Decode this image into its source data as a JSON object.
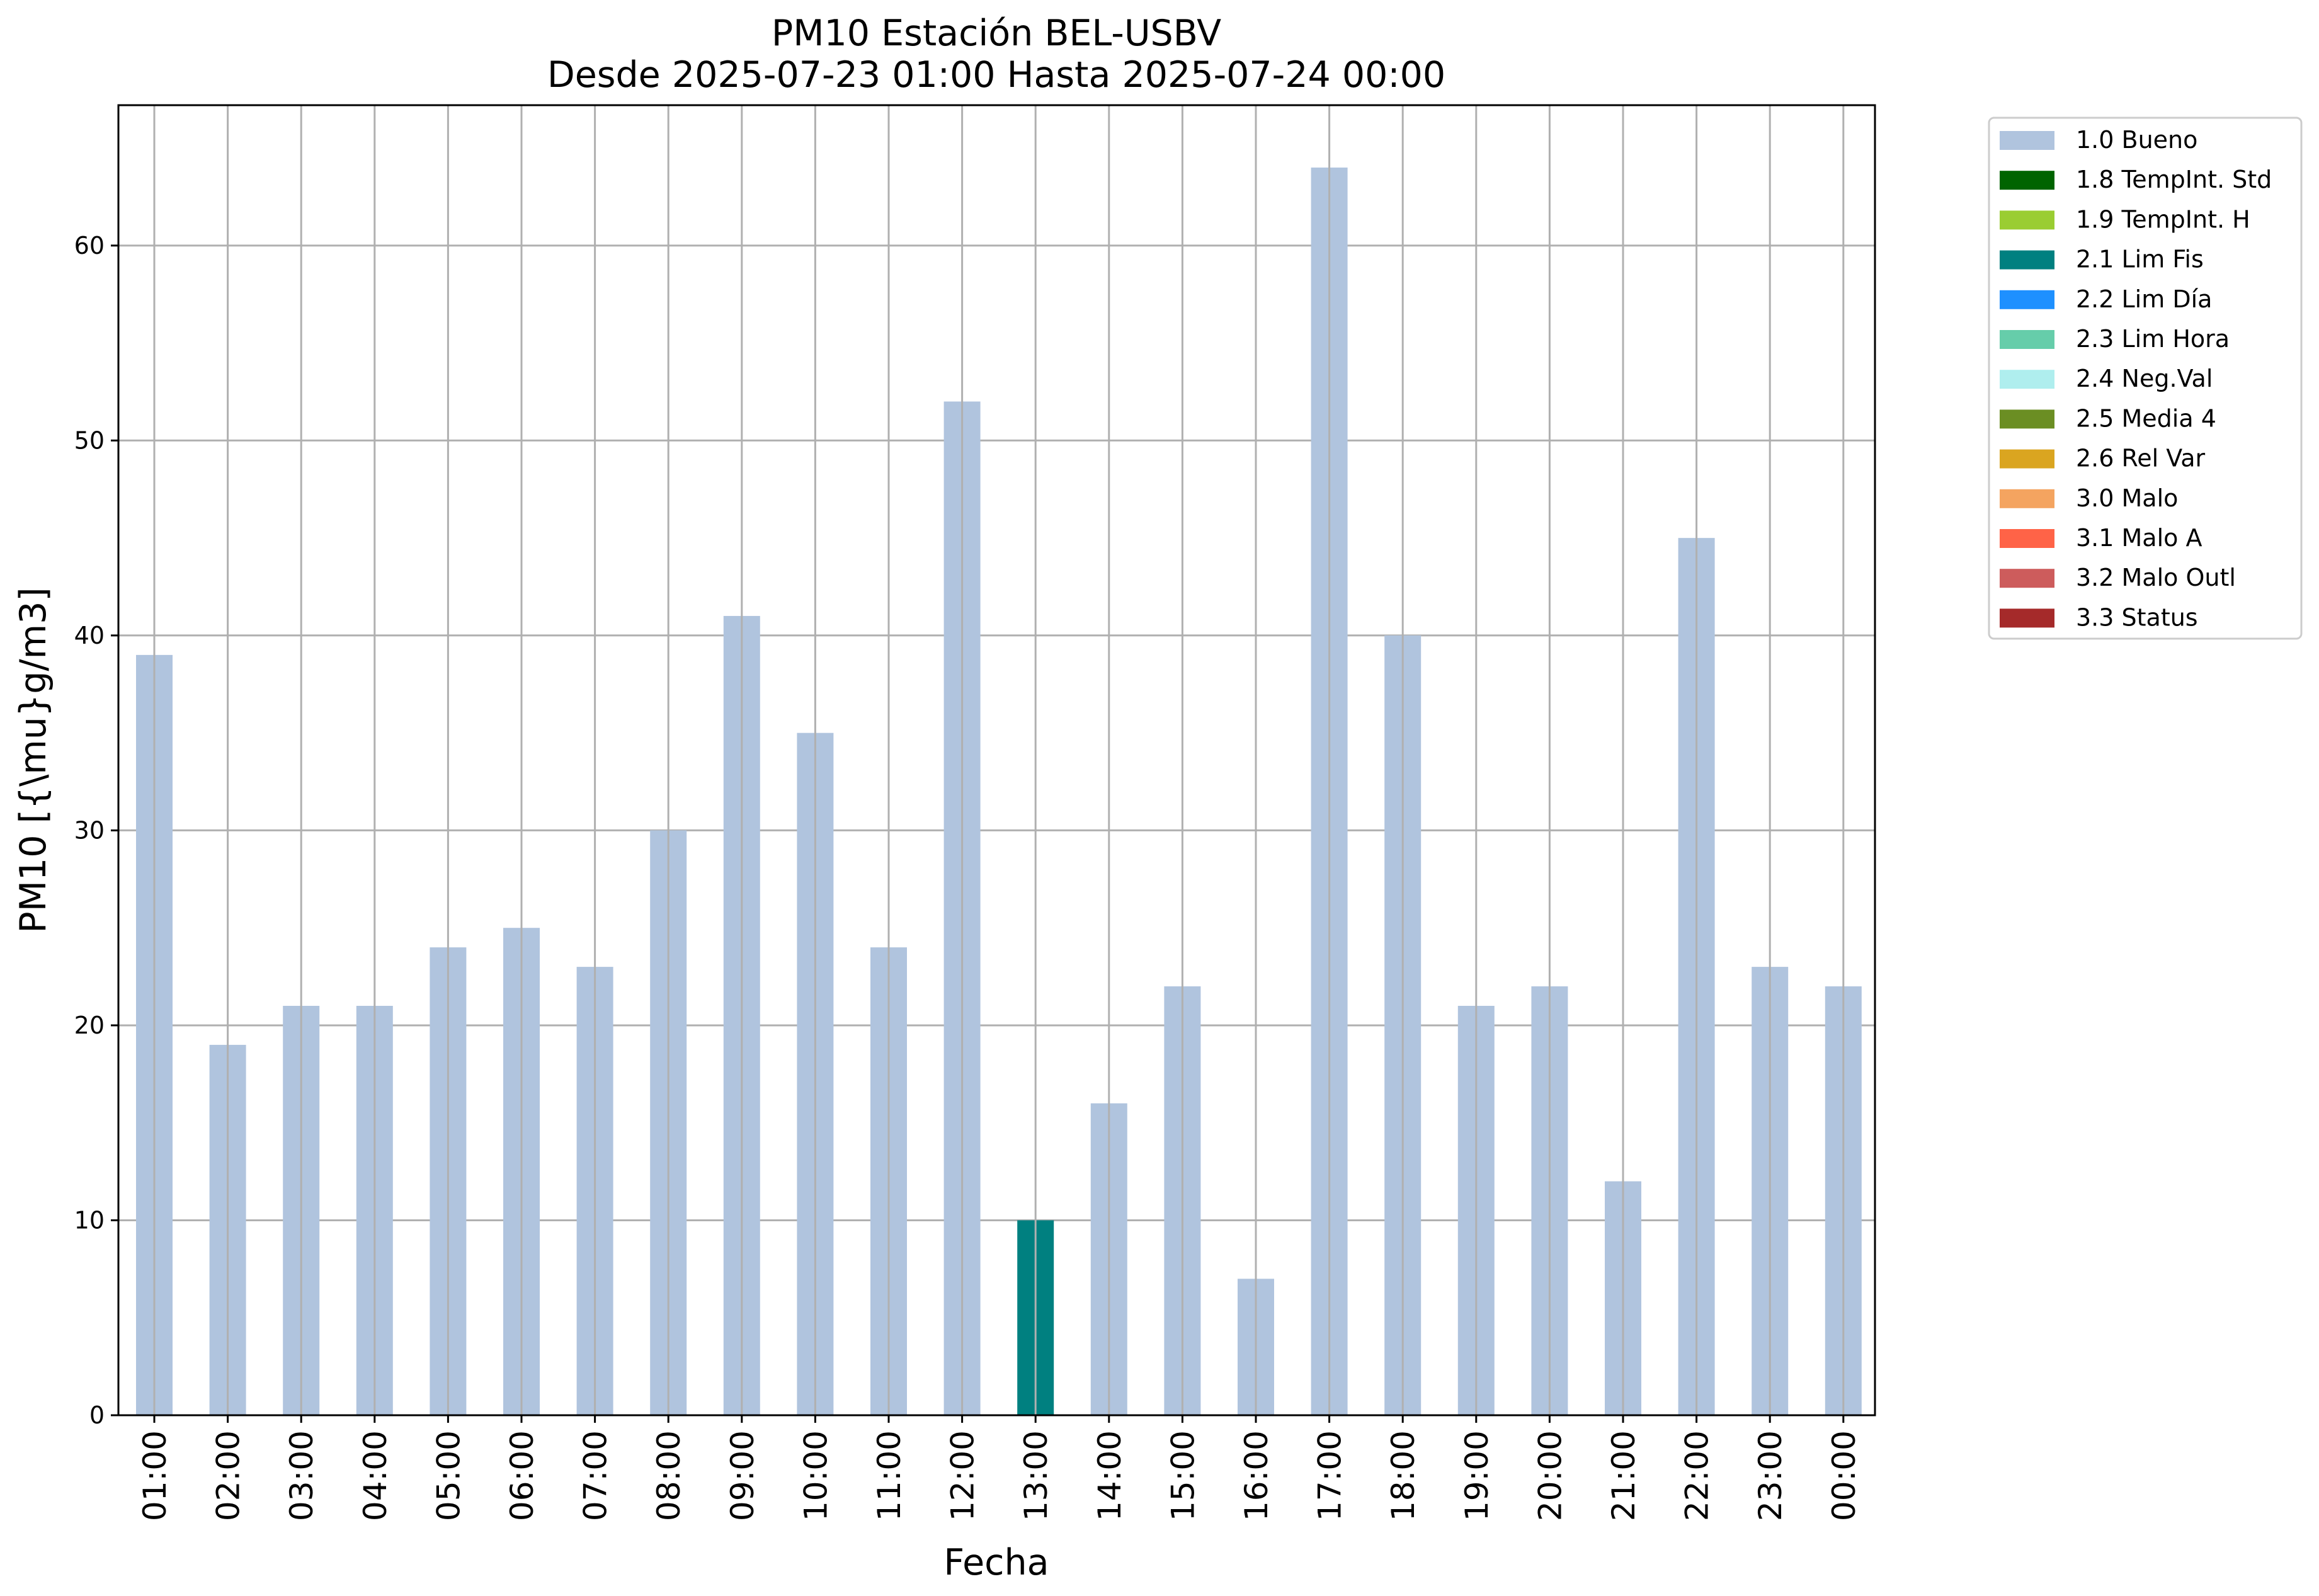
{
  "chart_data": {
    "type": "bar",
    "title": "PM10 Estación BEL-USBV",
    "subtitle": "Desde 2025-07-23 01:00 Hasta 2025-07-24 00:00",
    "xlabel": "Fecha",
    "ylabel": "PM10 [{\\mu}g/m3]",
    "ylim": [
      0,
      67.2
    ],
    "yticks": [
      0,
      10,
      20,
      30,
      40,
      50,
      60
    ],
    "grid": true,
    "legend_position": "outside-top-right",
    "categories": [
      "01:00",
      "02:00",
      "03:00",
      "04:00",
      "05:00",
      "06:00",
      "07:00",
      "08:00",
      "09:00",
      "10:00",
      "11:00",
      "12:00",
      "13:00",
      "14:00",
      "15:00",
      "16:00",
      "17:00",
      "18:00",
      "19:00",
      "20:00",
      "21:00",
      "22:00",
      "23:00",
      "00:00"
    ],
    "values": [
      39,
      19,
      21,
      21,
      24,
      25,
      23,
      30,
      41,
      35,
      24,
      52,
      10,
      16,
      22,
      7,
      64,
      40,
      21,
      22,
      12,
      45,
      23,
      22
    ],
    "bar_status": [
      "1.0 Bueno",
      "1.0 Bueno",
      "1.0 Bueno",
      "1.0 Bueno",
      "1.0 Bueno",
      "1.0 Bueno",
      "1.0 Bueno",
      "1.0 Bueno",
      "1.0 Bueno",
      "1.0 Bueno",
      "1.0 Bueno",
      "1.0 Bueno",
      "2.1 Lim Fis",
      "1.0 Bueno",
      "1.0 Bueno",
      "1.0 Bueno",
      "1.0 Bueno",
      "1.0 Bueno",
      "1.0 Bueno",
      "1.0 Bueno",
      "1.0 Bueno",
      "1.0 Bueno",
      "1.0 Bueno",
      "1.0 Bueno"
    ],
    "legend": [
      {
        "label": "1.0 Bueno",
        "color": "#b0c4de"
      },
      {
        "label": "1.8 TempInt. Std",
        "color": "#006400"
      },
      {
        "label": "1.9 TempInt. H",
        "color": "#9acd32"
      },
      {
        "label": "2.1 Lim Fis",
        "color": "#008080"
      },
      {
        "label": "2.2 Lim Día",
        "color": "#1e90ff"
      },
      {
        "label": "2.3 Lim Hora",
        "color": "#66cdaa"
      },
      {
        "label": "2.4 Neg.Val",
        "color": "#afeeee"
      },
      {
        "label": "2.5 Media 4",
        "color": "#6b8e23"
      },
      {
        "label": "2.6 Rel Var",
        "color": "#daa520"
      },
      {
        "label": "3.0 Malo",
        "color": "#f4a460"
      },
      {
        "label": "3.1 Malo A",
        "color": "#ff6347"
      },
      {
        "label": "3.2 Malo Outl",
        "color": "#cd5c5c"
      },
      {
        "label": "3.3 Status",
        "color": "#a52a2a"
      }
    ]
  }
}
